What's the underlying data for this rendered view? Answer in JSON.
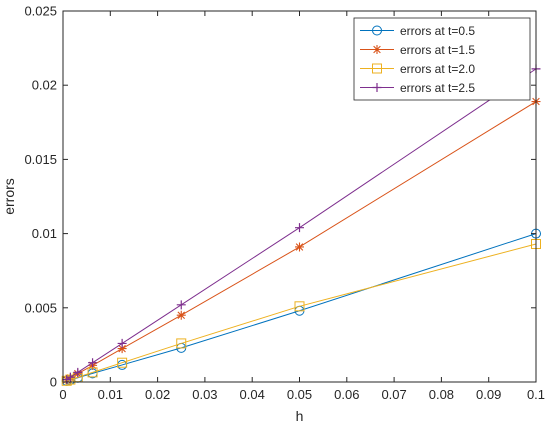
{
  "chart_data": {
    "type": "line",
    "title": "",
    "xlabel": "h",
    "ylabel": "errors",
    "xlim": [
      0,
      0.1
    ],
    "ylim": [
      0,
      0.025
    ],
    "xticks": [
      0,
      0.01,
      0.02,
      0.03,
      0.04,
      0.05,
      0.06,
      0.07,
      0.08,
      0.09,
      0.1
    ],
    "xtick_labels": [
      "0",
      "0.01",
      "0.02",
      "0.03",
      "0.04",
      "0.05",
      "0.06",
      "0.07",
      "0.08",
      "0.09",
      "0.1"
    ],
    "yticks": [
      0,
      0.005,
      0.01,
      0.015,
      0.02,
      0.025
    ],
    "ytick_labels": [
      "0",
      "0.005",
      "0.01",
      "0.015",
      "0.02",
      "0.025"
    ],
    "grid": false,
    "legend_position": "top-right",
    "x": [
      0.1,
      0.05,
      0.025,
      0.0125,
      0.00625,
      0.003125,
      0.0015625,
      0.00078125
    ],
    "series": [
      {
        "name": "errors at t=0.5",
        "color": "#0072BD",
        "marker": "circle",
        "values": [
          0.01,
          0.0048,
          0.0023,
          0.00115,
          0.00058,
          0.00029,
          0.000145,
          7.3e-05
        ]
      },
      {
        "name": "errors at t=1.5",
        "color": "#D95319",
        "marker": "asterisk",
        "values": [
          0.0189,
          0.0091,
          0.0045,
          0.00225,
          0.00112,
          0.00056,
          0.00028,
          0.00014
        ]
      },
      {
        "name": "errors at t=2.0",
        "color": "#EDB120",
        "marker": "square",
        "values": [
          0.0093,
          0.0051,
          0.0026,
          0.0013,
          0.00065,
          0.000325,
          0.000163,
          8.1e-05
        ]
      },
      {
        "name": "errors at t=2.5",
        "color": "#7E2F8E",
        "marker": "plus",
        "values": [
          0.0211,
          0.0104,
          0.0052,
          0.0026,
          0.0013,
          0.00065,
          0.000325,
          0.000163
        ]
      }
    ]
  }
}
